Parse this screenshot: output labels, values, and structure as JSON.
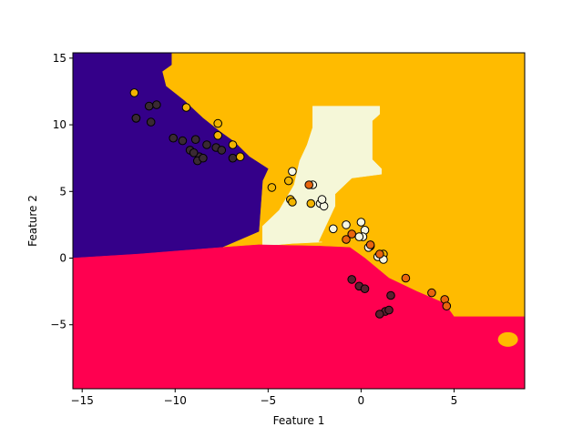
{
  "chart_data": {
    "type": "scatter",
    "subtype": "decision-boundary",
    "title": "",
    "xlabel": "Feature 1",
    "ylabel": "Feature 2",
    "xlim": [
      -15.5,
      8.8
    ],
    "ylim": [
      -9.8,
      15.4
    ],
    "xticks": [
      -15,
      -10,
      -5,
      0,
      5
    ],
    "yticks": [
      -5,
      0,
      5,
      10,
      15
    ],
    "grid": false,
    "legend": "none",
    "colors": {
      "class_0": "#340089",
      "class_1": "#ff0050",
      "class_2": "#ffbb00",
      "class_3": "#f5f7d8",
      "point_class_0": "#3a2a33",
      "point_class_1": "#5a2030",
      "point_class_2": "#f2b400",
      "point_class_3": "#f6f7e2",
      "point_class_4": "#e8650e",
      "edge": "#000000"
    },
    "regions": [
      {
        "class": "class_0",
        "polygon": [
          [
            -15.5,
            15.4
          ],
          [
            -10.2,
            15.4
          ],
          [
            -10.2,
            14.5
          ],
          [
            -10.7,
            14.0
          ],
          [
            -10.5,
            12.9
          ],
          [
            -9.5,
            11.8
          ],
          [
            -8.5,
            10.5
          ],
          [
            -7.6,
            9.5
          ],
          [
            -6.8,
            8.7
          ],
          [
            -6.0,
            7.6
          ],
          [
            -5.0,
            6.7
          ],
          [
            -5.3,
            5.8
          ],
          [
            -5.5,
            2.0
          ],
          [
            -7.5,
            0.8
          ],
          [
            -12.0,
            0.3
          ],
          [
            -15.5,
            0.0
          ]
        ]
      },
      {
        "class": "class_3",
        "polygon": [
          [
            -2.6,
            11.4
          ],
          [
            1.0,
            11.4
          ],
          [
            1.0,
            10.8
          ],
          [
            0.6,
            10.3
          ],
          [
            0.6,
            7.4
          ],
          [
            1.1,
            6.7
          ],
          [
            1.1,
            6.3
          ],
          [
            -0.5,
            6.0
          ],
          [
            -1.4,
            4.8
          ],
          [
            -1.4,
            3.9
          ],
          [
            -2.3,
            1.2
          ],
          [
            -2.1,
            1.2
          ],
          [
            -3.7,
            1.1
          ],
          [
            -5.3,
            0.9
          ],
          [
            -5.3,
            2.4
          ],
          [
            -4.4,
            3.6
          ],
          [
            -3.6,
            5.5
          ],
          [
            -3.3,
            7.3
          ],
          [
            -2.9,
            8.5
          ],
          [
            -2.6,
            9.8
          ]
        ]
      },
      {
        "class": "class_1",
        "polygon": [
          [
            -15.5,
            0.0
          ],
          [
            -12.0,
            0.3
          ],
          [
            -7.5,
            0.8
          ],
          [
            -5.5,
            1.0
          ],
          [
            -2.3,
            0.9
          ],
          [
            -0.6,
            0.8
          ],
          [
            0.2,
            0.0
          ],
          [
            1.5,
            -1.5
          ],
          [
            3.0,
            -2.5
          ],
          [
            4.5,
            -3.4
          ],
          [
            5.0,
            -4.4
          ],
          [
            8.8,
            -4.4
          ],
          [
            8.8,
            -9.8
          ],
          [
            -15.5,
            -9.8
          ]
        ]
      }
    ],
    "series": [
      {
        "class": "point_class_0",
        "x": [
          -12.1,
          -11.4,
          -11.0,
          -12.1,
          -11.3,
          -10.1,
          -9.6,
          -9.2,
          -8.9,
          -8.7,
          -8.8,
          -8.3,
          -8.5,
          -7.8,
          -7.5,
          -6.9,
          -9.0
        ],
        "y": [
          10.5,
          11.4,
          11.5,
          10.5,
          10.2,
          9.0,
          8.8,
          8.1,
          8.9,
          7.6,
          7.3,
          8.5,
          7.5,
          8.3,
          8.1,
          7.5,
          7.9
        ]
      },
      {
        "class": "point_class_1",
        "x": [
          -0.5,
          -0.1,
          0.2,
          1.6,
          1.3,
          1.0,
          1.5
        ],
        "y": [
          -1.6,
          -2.1,
          -2.3,
          -2.8,
          -4.0,
          -4.2,
          -3.9
        ]
      },
      {
        "class": "point_class_2",
        "x": [
          -12.2,
          -9.4,
          -7.7,
          -7.7,
          -6.9,
          -6.5,
          -4.8,
          -3.9,
          -3.8,
          -3.7,
          -2.7,
          0.5,
          1.2
        ],
        "y": [
          12.4,
          11.3,
          10.1,
          9.2,
          8.5,
          7.6,
          5.3,
          5.8,
          4.4,
          4.2,
          4.1,
          0.9,
          0.3
        ]
      },
      {
        "class": "point_class_3",
        "x": [
          -3.7,
          -2.6,
          -2.2,
          -2.0,
          -2.1,
          -1.5,
          -0.8,
          0.0,
          0.2,
          0.1,
          -0.1,
          0.4,
          0.9,
          1.2
        ],
        "y": [
          6.5,
          5.5,
          4.1,
          3.9,
          4.4,
          2.2,
          2.5,
          2.7,
          2.1,
          1.6,
          1.6,
          0.8,
          0.1,
          -0.1
        ]
      },
      {
        "class": "point_class_4",
        "x": [
          -2.8,
          -0.8,
          -0.5,
          0.5,
          1.0,
          2.4,
          3.8,
          4.5,
          4.6
        ],
        "y": [
          5.5,
          1.4,
          1.8,
          1.0,
          0.3,
          -1.5,
          -2.6,
          -3.1,
          -3.6
        ]
      }
    ]
  }
}
